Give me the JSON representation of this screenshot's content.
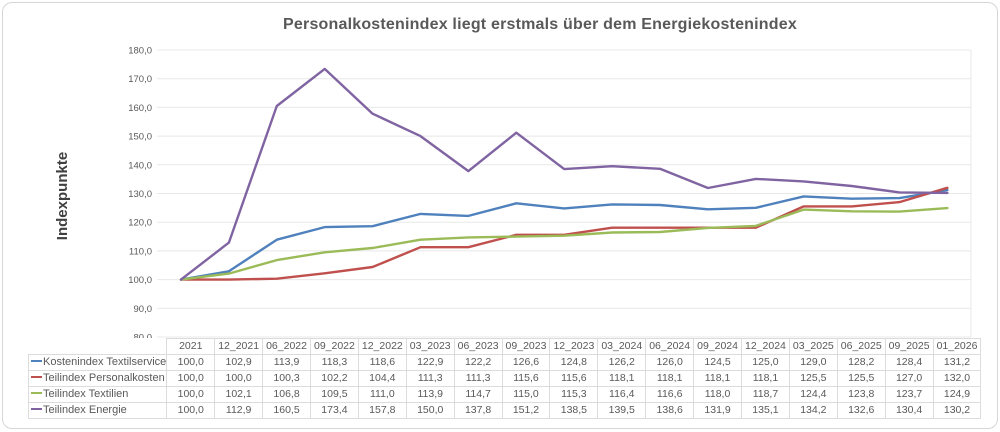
{
  "chart_data": {
    "type": "line",
    "title": "Personalkostenindex liegt erstmals über dem Energiekostenindex",
    "ylabel": "Indexpunkte",
    "ylim": [
      80,
      180
    ],
    "ytick_step": 10,
    "ytick_format": "comma-decimal-one-place",
    "grid": "horizontal",
    "legend_position": "table-left",
    "categories": [
      "2021",
      "12_2021",
      "06_2022",
      "09_2022",
      "12_2022",
      "03_2023",
      "06_2023",
      "09_2023",
      "12_2023",
      "03_2024",
      "06_2024",
      "09_2024",
      "12_2024",
      "03_2025",
      "06_2025",
      "09_2025",
      "01_2026"
    ],
    "series": [
      {
        "name": "Kostenindex Textilservice",
        "color": "#4F81BD",
        "values": [
          100.0,
          102.9,
          113.9,
          118.3,
          118.6,
          122.9,
          122.2,
          126.6,
          124.8,
          126.2,
          126.0,
          124.5,
          125.0,
          129.0,
          128.2,
          128.4,
          131.2
        ]
      },
      {
        "name": "Teilindex Personalkosten",
        "color": "#C0504D",
        "values": [
          100.0,
          100.0,
          100.3,
          102.2,
          104.4,
          111.3,
          111.3,
          115.6,
          115.6,
          118.1,
          118.1,
          118.1,
          118.1,
          125.5,
          125.5,
          127.0,
          132.0
        ]
      },
      {
        "name": "Teilindex Textilien",
        "color": "#9BBB59",
        "values": [
          100.0,
          102.1,
          106.8,
          109.5,
          111.0,
          113.9,
          114.7,
          115.0,
          115.3,
          116.4,
          116.6,
          118.0,
          118.7,
          124.4,
          123.8,
          123.7,
          124.9
        ]
      },
      {
        "name": "Teilindex Energie",
        "color": "#8064A2",
        "values": [
          100.0,
          112.9,
          160.5,
          173.4,
          157.8,
          150.0,
          137.8,
          151.2,
          138.5,
          139.5,
          138.6,
          131.9,
          135.1,
          134.2,
          132.6,
          130.4,
          130.2
        ]
      }
    ],
    "colors": {
      "gridline": "#e8e8e8",
      "axis_text": "#595959",
      "title_text": "#595959",
      "table_border": "#dcdcdc"
    }
  }
}
